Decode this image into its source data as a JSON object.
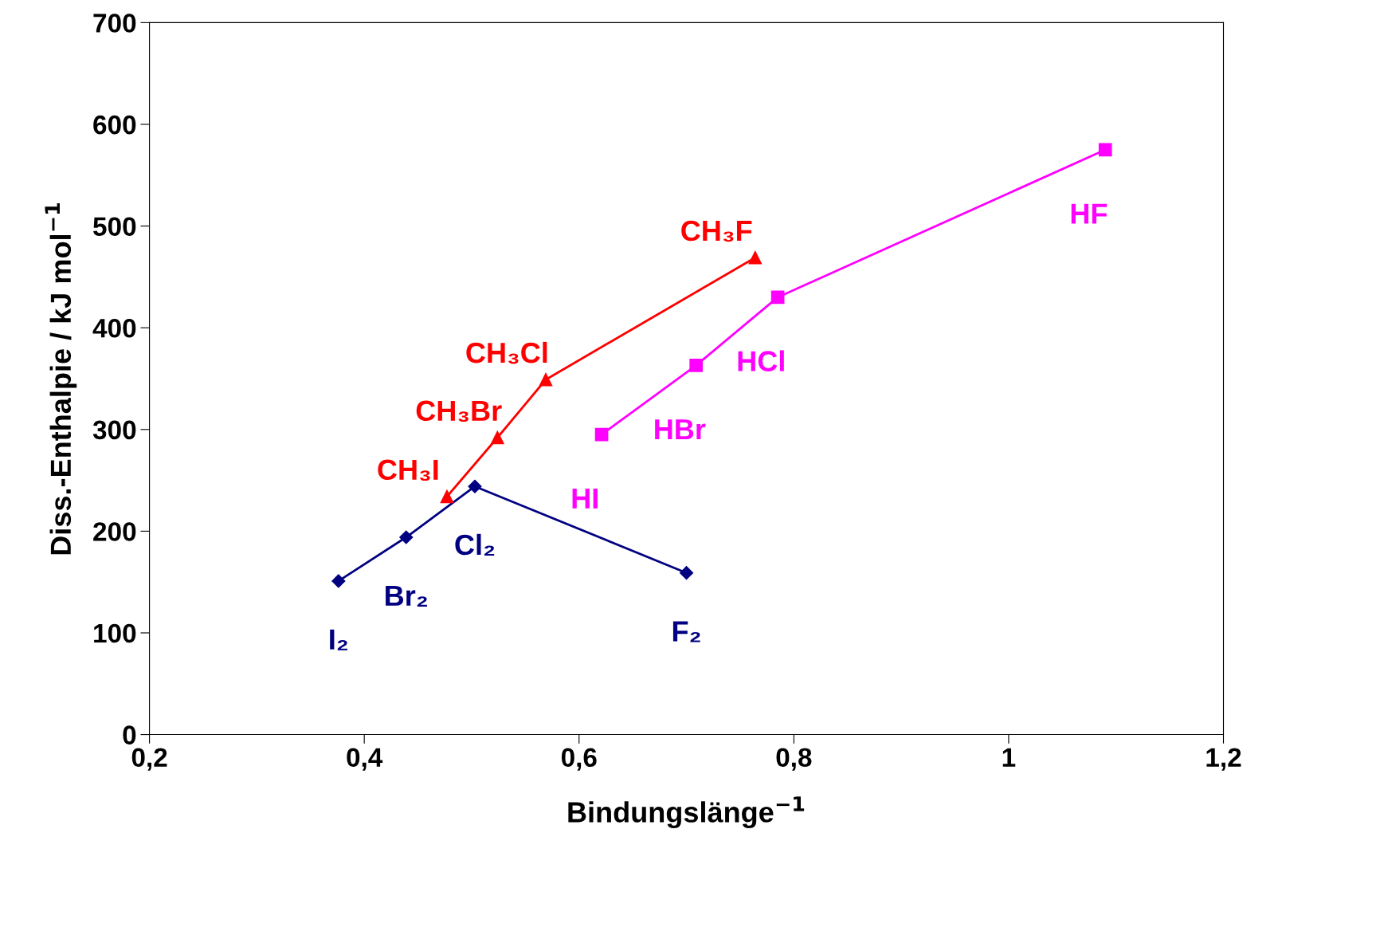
{
  "chart_data": {
    "type": "line",
    "xlabel": "Bindungslänge$^{−1}$",
    "ylabel": "Diss.-Enthalpie / kJ mol$^{−1}$",
    "xlim": [
      0.2,
      1.2
    ],
    "xticks": [
      {
        "value": 0.2,
        "label": "0,2"
      },
      {
        "value": 0.4,
        "label": "0,4"
      },
      {
        "value": 0.6,
        "label": "0,6"
      },
      {
        "value": 0.8,
        "label": "0,8"
      },
      1,
      {
        "value": 1.2,
        "label": "1,2"
      }
    ],
    "ylim": [
      0,
      700
    ],
    "yticks": [
      0,
      100,
      200,
      300,
      400,
      500,
      600,
      700
    ],
    "grid": false,
    "legend": false,
    "line_style": "solid",
    "series": [
      {
        "color": "#000080",
        "marker": "diamond",
        "x": [
          0.376,
          0.439,
          0.503,
          0.7
        ],
        "values": [
          151,
          194,
          244,
          159
        ],
        "value_labels": [
          "I₂",
          "Br₂",
          "Cl₂",
          "F₂"
        ]
      },
      {
        "color": "#ff0000",
        "marker": "triangle",
        "x": [
          0.477,
          0.524,
          0.569,
          0.764
        ],
        "values": [
          234,
          292,
          349,
          469
        ],
        "value_labels": [
          "CH₃I",
          "CH₃Br",
          "CH₃Cl",
          "CH₃F"
        ]
      },
      {
        "color": "#ff00ff",
        "marker": "square",
        "x": [
          0.621,
          0.709,
          0.785,
          1.09
        ],
        "values": [
          295,
          363,
          430,
          575
        ],
        "value_labels": [
          "HI",
          "HBr",
          "HCl",
          "HF"
        ]
      }
    ]
  }
}
